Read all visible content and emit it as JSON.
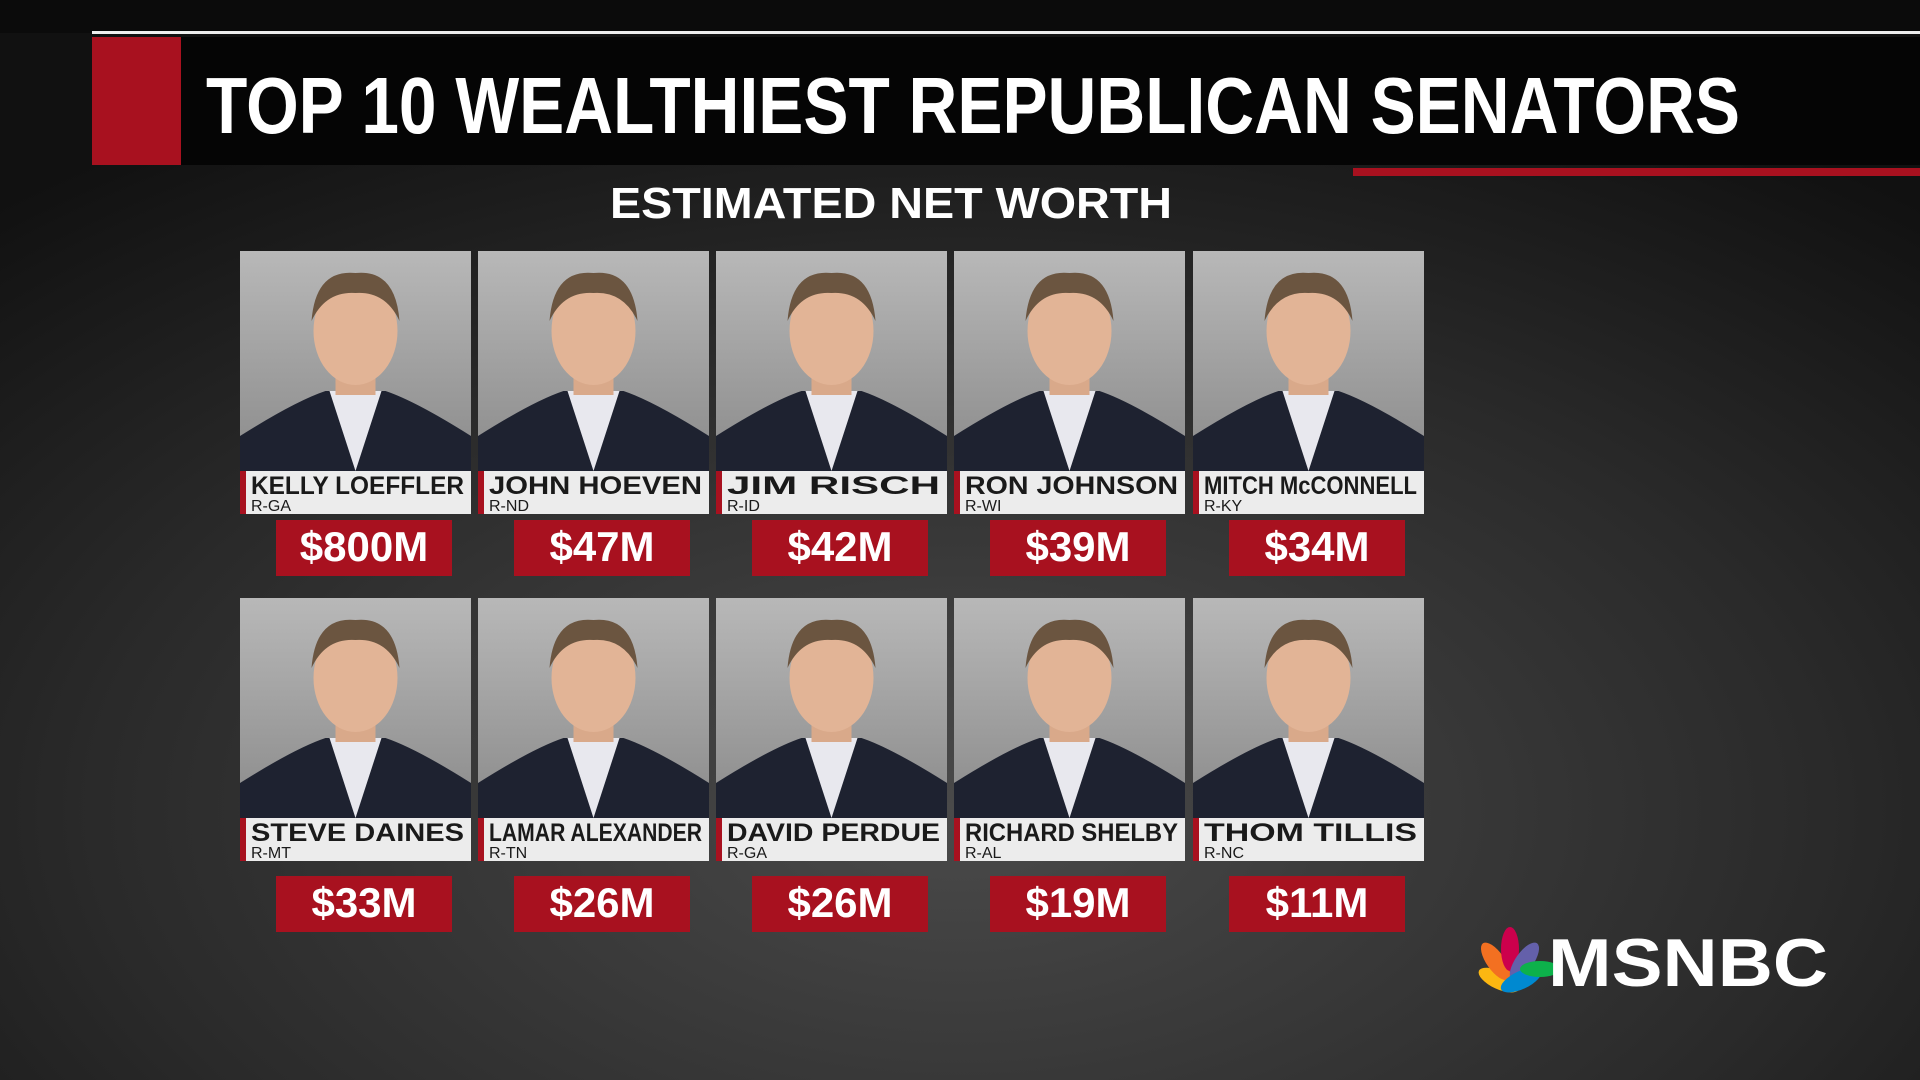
{
  "header": {
    "title": "TOP 10 WEALTHIEST REPUBLICAN SENATORS",
    "subtitle": "ESTIMATED NET WORTH"
  },
  "senators": [
    {
      "name": "KELLY LOEFFLER",
      "party": "R-GA",
      "net_worth": "$800M"
    },
    {
      "name": "JOHN HOEVEN",
      "party": "R-ND",
      "net_worth": "$47M"
    },
    {
      "name": "JIM RISCH",
      "party": "R-ID",
      "net_worth": "$42M"
    },
    {
      "name": "RON JOHNSON",
      "party": "R-WI",
      "net_worth": "$39M"
    },
    {
      "name": "MITCH McCONNELL",
      "party": "R-KY",
      "net_worth": "$34M"
    },
    {
      "name": "STEVE DAINES",
      "party": "R-MT",
      "net_worth": "$33M"
    },
    {
      "name": "LAMAR ALEXANDER",
      "party": "R-TN",
      "net_worth": "$26M"
    },
    {
      "name": "DAVID PERDUE",
      "party": "R-GA",
      "net_worth": "$26M"
    },
    {
      "name": "RICHARD SHELBY",
      "party": "R-AL",
      "net_worth": "$19M"
    },
    {
      "name": "THOM TILLIS",
      "party": "R-NC",
      "net_worth": "$11M"
    }
  ],
  "logo": {
    "text": "MSNBC"
  }
}
